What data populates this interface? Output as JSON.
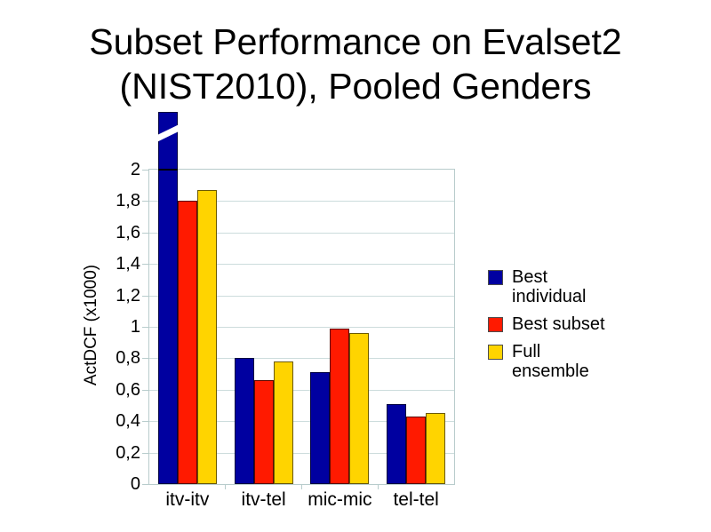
{
  "slide": {
    "title_lines": [
      "Subset Performance on Evalset2",
      "(NIST2010), Pooled Genders"
    ],
    "background": "#FFFFFF"
  },
  "chart_data": {
    "type": "bar",
    "title": "Subset Performance on Evalset2 (NIST2010), Pooled Genders",
    "xlabel": "",
    "ylabel": "ActDCF (x1000)",
    "categories": [
      "itv-itv",
      "itv-tel",
      "mic-mic",
      "tel-tel"
    ],
    "series": [
      {
        "name": "Best individual",
        "color": "#0000A0",
        "border": "#000040",
        "values": [
          null,
          0.8,
          0.71,
          0.51
        ]
      },
      {
        "name": "Best subset",
        "color": "#FF1A00",
        "border": "#5A0A00",
        "values": [
          1.8,
          0.66,
          0.99,
          0.43
        ]
      },
      {
        "name": "Full ensemble",
        "color": "#FFD400",
        "border": "#6B5900",
        "values": [
          1.87,
          0.78,
          0.96,
          0.45
        ]
      }
    ],
    "clipped_bar": {
      "series": "Best individual",
      "category": "itv-itv",
      "note": "value exceeds the y-axis maximum (>2); bar is drawn through the top of the axis with a white diagonal break stripe and a black line where it crosses y=2"
    },
    "ylim": [
      0,
      2
    ],
    "ytick_labels": [
      "0",
      "0,2",
      "0,4",
      "0,6",
      "0,8",
      "1",
      "1,2",
      "1,4",
      "1,6",
      "1,8",
      "2"
    ],
    "ytick_values": [
      0,
      0.2,
      0.4,
      0.6,
      0.8,
      1,
      1.2,
      1.4,
      1.6,
      1.8,
      2
    ],
    "decimal_separator": ",",
    "grid": "horizontal",
    "legend_position": "right",
    "colors": {
      "gridline": "#CCDCDC",
      "axis": "#B8CCCC",
      "text": "#000000",
      "background": "#FFFFFF"
    }
  }
}
